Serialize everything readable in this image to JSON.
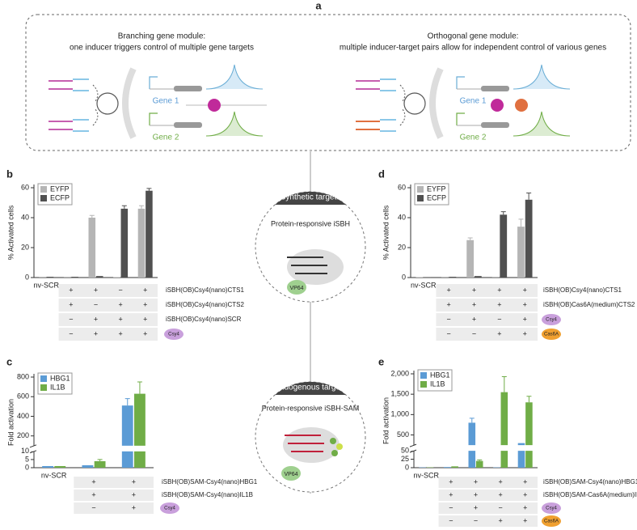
{
  "panel_labels": [
    "a",
    "b",
    "c",
    "d",
    "e"
  ],
  "module_a": {
    "left": {
      "title": "Branching gene module:",
      "subtitle": "one inducer triggers control of multiple gene targets",
      "gene1": "Gene 1",
      "gene2": "Gene 2"
    },
    "right": {
      "title": "Orthogonal gene module:",
      "subtitle": "multiple inducer-target pairs allow for independent control of various genes",
      "gene1": "Gene 1",
      "gene2": "Gene 2"
    }
  },
  "center": {
    "top": {
      "header": "Synthetic targets",
      "title": "Protein-responsive iSBH",
      "domain": "VP64"
    },
    "bottom": {
      "header": "Endogenous targets",
      "title": "Protein-responsive iSBH-SAM",
      "domain": "VP64"
    }
  },
  "chart_data": [
    {
      "type": "bar",
      "y_label": "% Activated cells",
      "categories": [
        "nv-SCR",
        null,
        null,
        null,
        null
      ],
      "series": [
        {
          "name": "EYFP",
          "color": "#b5b5b5",
          "values": [
            0.5,
            0.5,
            40,
            0.3,
            46
          ],
          "errors": [
            null,
            null,
            1.5,
            null,
            2
          ]
        },
        {
          "name": "ECFP",
          "color": "#505050",
          "values": [
            0.5,
            0.5,
            1,
            46,
            58
          ],
          "errors": [
            null,
            null,
            null,
            2,
            1.5
          ]
        }
      ],
      "ylim": [
        0,
        60
      ],
      "yticks": [
        0,
        20,
        40,
        60
      ],
      "rows": [
        {
          "label": "iSBH(OB)Csy4(nano)CTS1",
          "cells": [
            "+",
            "+",
            "−",
            "+"
          ]
        },
        {
          "label": "iSBH(OB)Csy4(nano)CTS2",
          "cells": [
            "+",
            "−",
            "+",
            "+"
          ]
        },
        {
          "label": "iSBH(OB)Csy4(nano)SCR",
          "cells": [
            "−",
            "+",
            "+",
            "+"
          ]
        },
        {
          "label": "Csy4",
          "icon_color": "#c9a0dc",
          "cells": [
            "−",
            "+",
            "+",
            "+"
          ]
        }
      ]
    },
    {
      "type": "bar",
      "y_label": "Fold activation",
      "categories": [
        "nv-SCR",
        null,
        null
      ],
      "series": [
        {
          "name": "HBG1",
          "color": "#5b9bd5",
          "values": [
            1,
            1.5,
            510
          ],
          "errors": [
            null,
            null,
            70
          ]
        },
        {
          "name": "IL1B",
          "color": "#70ad47",
          "values": [
            1,
            4,
            630
          ],
          "errors": [
            null,
            1,
            120
          ]
        }
      ],
      "ylim": [
        0,
        800
      ],
      "yticks": [
        0,
        5,
        10,
        200,
        400,
        600,
        800
      ],
      "ybreak": [
        10,
        100
      ],
      "rows": [
        {
          "label": "iSBH(OB)SAM-Csy4(nano)HBG1",
          "cells": [
            "+",
            "+"
          ]
        },
        {
          "label": "iSBH(OB)SAM-Csy4(nano)IL1B",
          "cells": [
            "+",
            "+"
          ]
        },
        {
          "label": "Csy4",
          "icon_color": "#c9a0dc",
          "cells": [
            "−",
            "+"
          ]
        }
      ]
    },
    {
      "type": "bar",
      "y_label": "% Activated cells",
      "categories": [
        "nv-SCR",
        null,
        null,
        null,
        null
      ],
      "series": [
        {
          "name": "EYFP",
          "color": "#b5b5b5",
          "values": [
            0.3,
            0.5,
            25,
            0.5,
            34
          ],
          "errors": [
            null,
            null,
            1.5,
            null,
            5
          ]
        },
        {
          "name": "ECFP",
          "color": "#505050",
          "values": [
            0.3,
            0.5,
            1,
            42,
            52
          ],
          "errors": [
            null,
            null,
            null,
            2,
            4.5
          ]
        }
      ],
      "ylim": [
        0,
        60
      ],
      "yticks": [
        0,
        20,
        40,
        60
      ],
      "rows": [
        {
          "label": "iSBH(OB)Csy4(nano)CTS1",
          "cells": [
            "+",
            "+",
            "+",
            "+"
          ]
        },
        {
          "label": "iSBH(OB)Cas6A(medium)CTS2",
          "cells": [
            "+",
            "+",
            "+",
            "+"
          ]
        },
        {
          "label": "Csy4",
          "icon_color": "#c9a0dc",
          "cells": [
            "−",
            "+",
            "−",
            "+"
          ]
        },
        {
          "label": "Cas6A",
          "icon_color": "#f0a030",
          "cells": [
            "−",
            "−",
            "+",
            "+"
          ]
        }
      ]
    },
    {
      "type": "bar",
      "y_label": "Fold activation",
      "categories": [
        "nv-SCR",
        null,
        null,
        null,
        null
      ],
      "series": [
        {
          "name": "HBG1",
          "color": "#5b9bd5",
          "values": [
            1,
            2,
            800,
            1,
            300
          ],
          "errors": [
            null,
            null,
            110,
            null,
            null
          ]
        },
        {
          "name": "IL1B",
          "color": "#70ad47",
          "values": [
            1,
            4,
            20,
            1550,
            1300
          ],
          "errors": [
            null,
            null,
            3,
            380,
            150
          ]
        }
      ],
      "ylim": [
        0,
        2000
      ],
      "yticks": [
        0,
        25,
        50,
        500,
        {
          "value": 1000,
          "label": "1,000"
        },
        {
          "value": 1500,
          "label": "1,500"
        },
        {
          "value": 2000,
          "label": "2,000"
        }
      ],
      "ybreak": [
        50,
        250
      ],
      "rows": [
        {
          "label": "iSBH(OB)SAM-Csy4(nano)HBG1",
          "cells": [
            "+",
            "+",
            "+",
            "+"
          ]
        },
        {
          "label": "iSBH(OB)SAM-Cas6A(medium)IL1B",
          "cells": [
            "+",
            "+",
            "+",
            "+"
          ]
        },
        {
          "label": "Csy4",
          "icon_color": "#c9a0dc",
          "cells": [
            "−",
            "+",
            "−",
            "+"
          ]
        },
        {
          "label": "Cas6A",
          "icon_color": "#f0a030",
          "cells": [
            "−",
            "−",
            "+",
            "+"
          ]
        }
      ]
    }
  ]
}
